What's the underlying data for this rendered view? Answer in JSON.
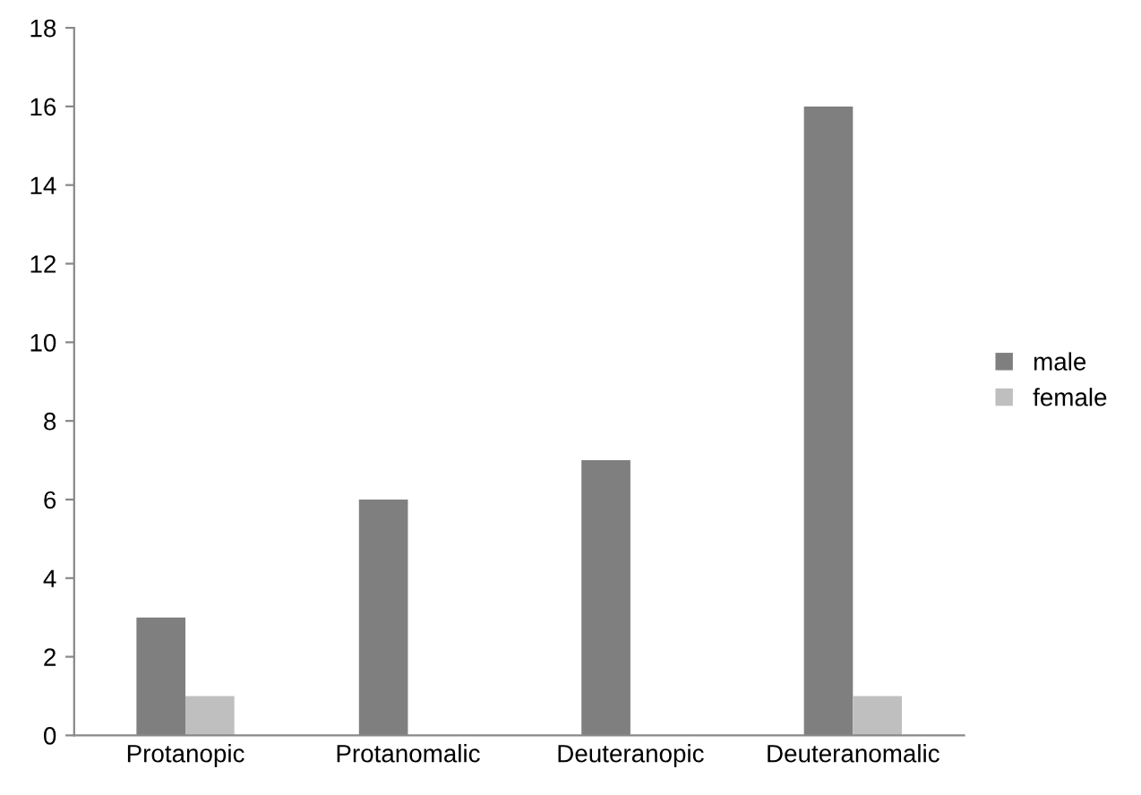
{
  "chart_data": {
    "type": "bar",
    "categories": [
      "Protanopic",
      "Protanomalic",
      "Deuteranopic",
      "Deuteranomalic"
    ],
    "series": [
      {
        "name": "male",
        "color": "#7f7f7f",
        "values": [
          3,
          6,
          7,
          16
        ]
      },
      {
        "name": "female",
        "color": "#bfbfbf",
        "values": [
          1,
          0,
          0,
          1
        ]
      }
    ],
    "ylim": [
      0,
      18
    ],
    "yticks": [
      0,
      2,
      4,
      6,
      8,
      10,
      12,
      14,
      16,
      18
    ],
    "grid": false,
    "legend": "right"
  }
}
